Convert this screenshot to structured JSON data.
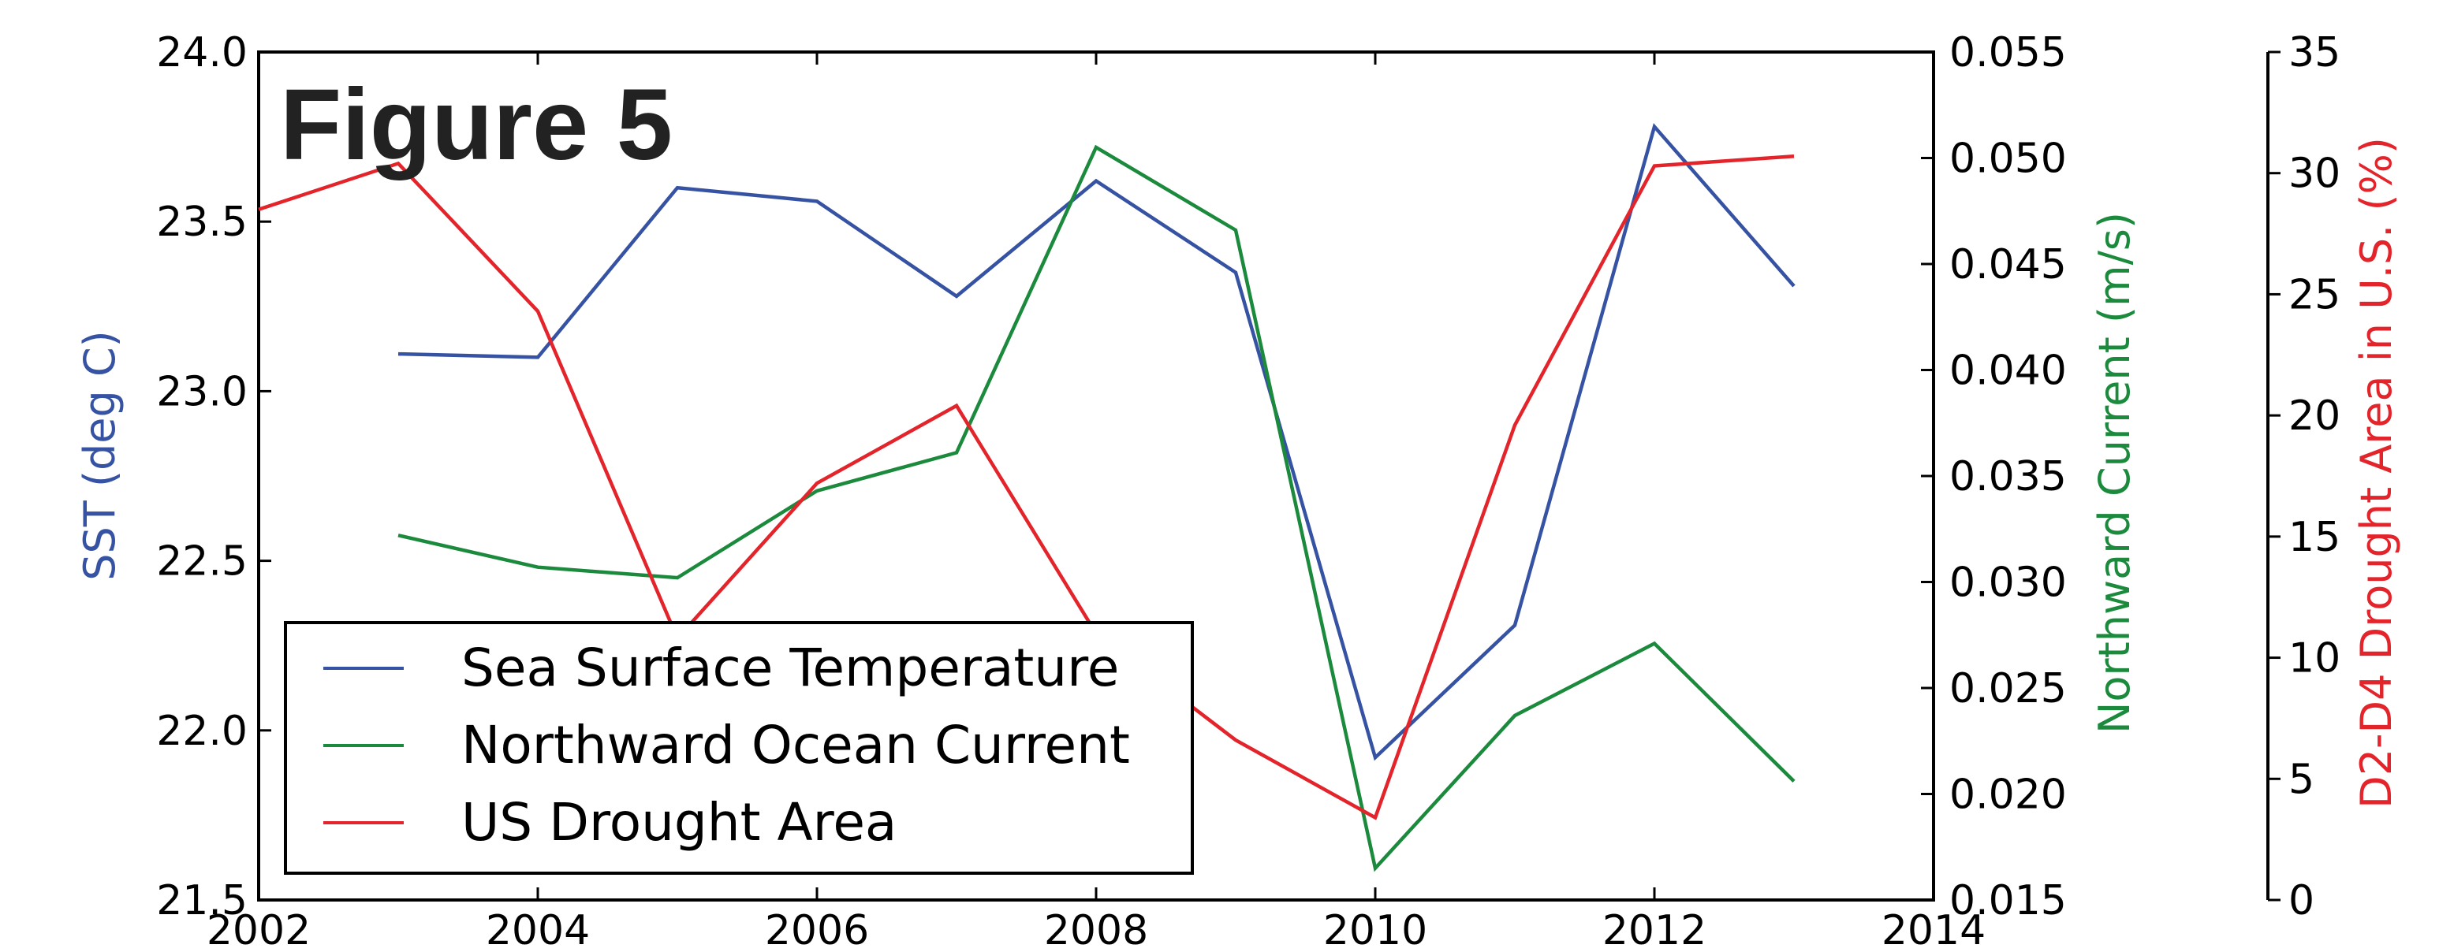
{
  "figure_label": "Figure 5",
  "colors": {
    "sst": "#3652a3",
    "current": "#1b8a3c",
    "drought": "#e3242b",
    "axis": "#000000"
  },
  "chart_data": {
    "type": "line",
    "title": "",
    "xlim": [
      2002,
      2014
    ],
    "x_ticks": [
      "2002",
      "2004",
      "2006",
      "2008",
      "2010",
      "2012",
      "2014"
    ],
    "x_tick_values": [
      2002,
      2004,
      2006,
      2008,
      2010,
      2012,
      2014
    ],
    "grid": false,
    "legend_position": "lower-left",
    "axes": {
      "left": {
        "label": "SST (deg C)",
        "ylim": [
          21.5,
          24.0
        ],
        "ticks": [
          "21.5",
          "22.0",
          "22.5",
          "23.0",
          "23.5",
          "24.0"
        ],
        "tick_values": [
          21.5,
          22.0,
          22.5,
          23.0,
          23.5,
          24.0
        ]
      },
      "right_inner": {
        "label": "Northward Current (m/s)",
        "ylim": [
          0.015,
          0.055
        ],
        "ticks": [
          "0.015",
          "0.020",
          "0.025",
          "0.030",
          "0.035",
          "0.040",
          "0.045",
          "0.050",
          "0.055"
        ],
        "tick_values": [
          0.015,
          0.02,
          0.025,
          0.03,
          0.035,
          0.04,
          0.045,
          0.05,
          0.055
        ]
      },
      "right_outer": {
        "label": "D2-D4 Drought Area in U.S. (%)",
        "ylim": [
          0,
          35
        ],
        "ticks": [
          "0",
          "5",
          "10",
          "15",
          "20",
          "25",
          "30",
          "35"
        ],
        "tick_values": [
          0,
          5,
          10,
          15,
          20,
          25,
          30,
          35
        ]
      }
    },
    "series": [
      {
        "name": "Sea Surface Temperature",
        "axis": "left",
        "color": "#3652a3",
        "x": [
          2003,
          2004,
          2005,
          2006,
          2007,
          2008,
          2009,
          2010,
          2011,
          2012,
          2013
        ],
        "y": [
          23.11,
          23.1,
          23.6,
          23.56,
          23.28,
          23.62,
          23.35,
          21.92,
          22.31,
          23.78,
          23.31
        ]
      },
      {
        "name": "Northward Ocean Current",
        "axis": "right_inner",
        "color": "#1b8a3c",
        "x": [
          2003,
          2004,
          2005,
          2006,
          2007,
          2008,
          2009,
          2010,
          2011,
          2012,
          2013
        ],
        "y": [
          0.0322,
          0.0307,
          0.0302,
          0.0343,
          0.0361,
          0.0505,
          0.0466,
          0.0165,
          0.0237,
          0.0271,
          0.0206
        ]
      },
      {
        "name": "US Drought Area",
        "axis": "right_outer",
        "color": "#e3242b",
        "x": [
          2002,
          2003,
          2004,
          2005,
          2006,
          2007,
          2008,
          2009,
          2010,
          2011,
          2012,
          2013
        ],
        "y": [
          28.5,
          30.4,
          24.3,
          10.8,
          17.2,
          20.4,
          11.0,
          6.6,
          3.4,
          19.6,
          30.3,
          30.7
        ]
      }
    ]
  }
}
